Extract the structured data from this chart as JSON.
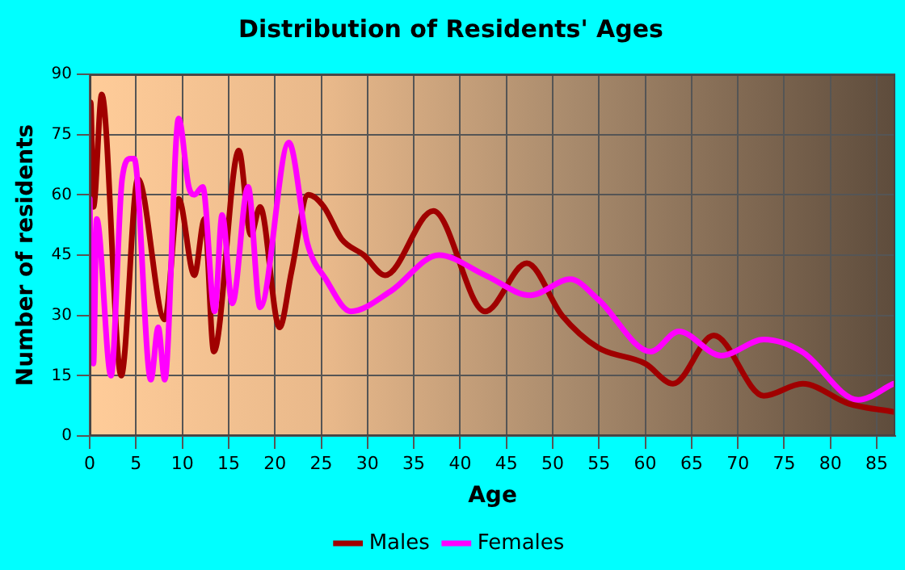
{
  "chart_data": {
    "type": "line",
    "title": "Distribution of Residents' Ages",
    "xlabel": "Age",
    "ylabel": "Number of residents",
    "xlim": [
      0,
      87
    ],
    "xticks": [
      0,
      5,
      10,
      15,
      20,
      25,
      30,
      35,
      40,
      45,
      50,
      55,
      60,
      65,
      70,
      75,
      80,
      85
    ],
    "ylim": [
      0,
      90
    ],
    "yticks": [
      0,
      15,
      30,
      45,
      60,
      75,
      90
    ],
    "grid": true,
    "legend": "bottom",
    "marker": "none",
    "line_style": "solid",
    "series": [
      {
        "name": "Males",
        "color": "#a00000",
        "x": [
          0,
          0.1,
          0.4,
          1.3,
          3.4,
          5.2,
          8.1,
          9.6,
          11.3,
          12.4,
          13.4,
          16.1,
          17.4,
          18.4,
          20.5,
          21.8,
          23.6,
          25.3,
          27.2,
          29.6,
          31.9,
          37.1,
          42.7,
          47.2,
          51,
          54.9,
          60,
          63,
          67.4,
          72.8,
          77,
          82,
          86.8
        ],
        "values": [
          64,
          83,
          57,
          85,
          15,
          64,
          29,
          59,
          40,
          54,
          21,
          71,
          50,
          57,
          27,
          41,
          60,
          57,
          49,
          45,
          40,
          56,
          31,
          43,
          30,
          22,
          18,
          13,
          25,
          10,
          13,
          8,
          6
        ]
      },
      {
        "name": "Females",
        "color": "#ff00ff",
        "x": [
          0,
          0.4,
          0.75,
          2.3,
          3.5,
          4.4,
          4.8,
          6.6,
          7.4,
          8.1,
          9.6,
          10.7,
          11.3,
          12.2,
          13.5,
          14.3,
          15.4,
          17.1,
          18.4,
          21.5,
          23.5,
          25.5,
          28.2,
          32.5,
          37.7,
          42.7,
          47.6,
          51.9,
          54.9,
          60.6,
          63.6,
          68.2,
          72.8,
          76.9,
          83,
          86.8
        ],
        "values": [
          59,
          18,
          54,
          15,
          64,
          69,
          69,
          14,
          27,
          14,
          79,
          62,
          60,
          62,
          31,
          55,
          33,
          62,
          32,
          73,
          48,
          39,
          31,
          36,
          45,
          40,
          35,
          39,
          34,
          21,
          26,
          20,
          24,
          21,
          9,
          13
        ]
      }
    ]
  }
}
